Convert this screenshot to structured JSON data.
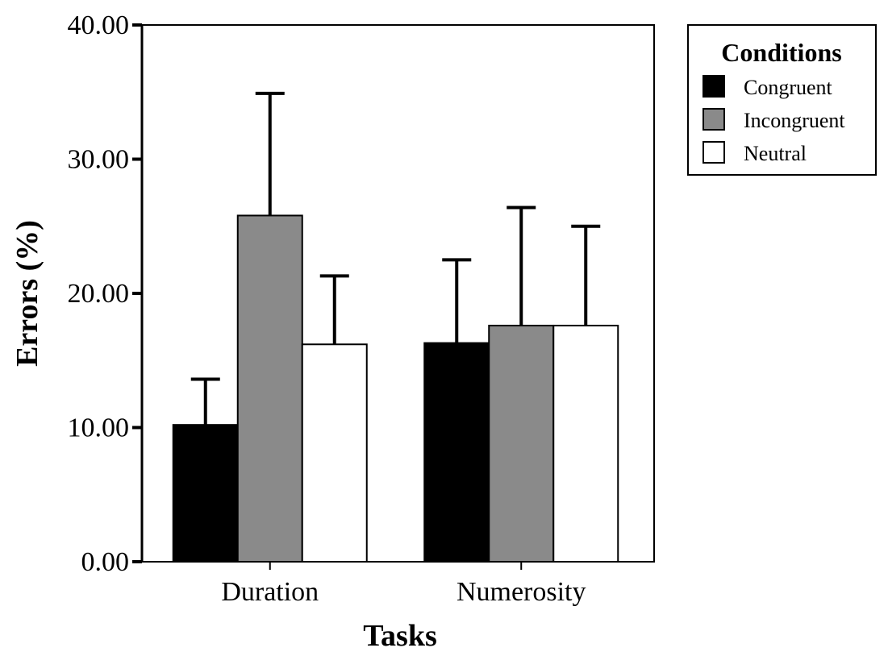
{
  "chart_data": {
    "type": "bar",
    "title": "",
    "xlabel": "Tasks",
    "ylabel": "Errors (%)",
    "ylim": [
      0,
      40
    ],
    "yticks": [
      "0.00",
      "10.00",
      "20.00",
      "30.00",
      "40.00"
    ],
    "categories": [
      "Duration",
      "Numerosity"
    ],
    "legend_title": "Conditions",
    "legend_position": "top-right, outside plot",
    "grid": false,
    "error_bars": "upper only",
    "series": [
      {
        "name": "Congruent",
        "color": "#000000",
        "values": [
          10.2,
          16.3
        ],
        "errors": [
          3.4,
          6.2
        ]
      },
      {
        "name": "Incongruent",
        "color": "#8a8a8a",
        "values": [
          25.8,
          17.6
        ],
        "errors": [
          9.1,
          8.8
        ]
      },
      {
        "name": "Neutral",
        "color": "#ffffff",
        "values": [
          16.2,
          17.6
        ],
        "errors": [
          5.1,
          7.4
        ]
      }
    ]
  }
}
